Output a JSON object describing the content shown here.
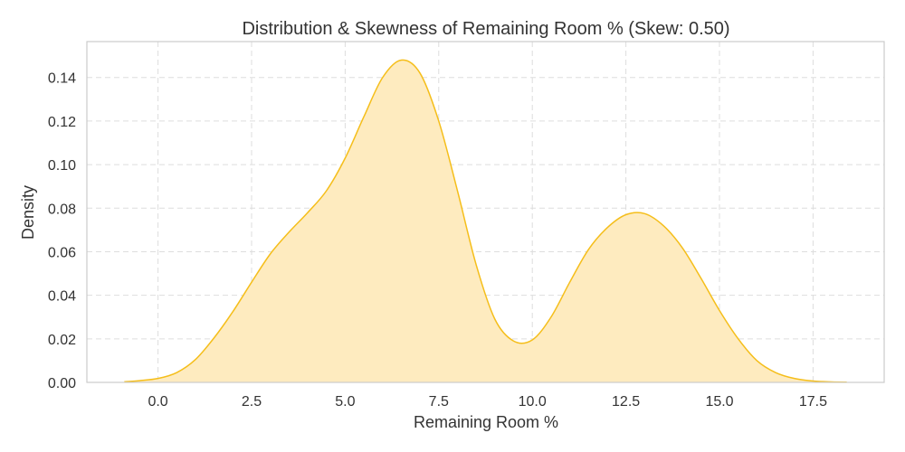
{
  "chart_data": {
    "type": "area",
    "title": "Distribution & Skewness of Remaining Room % (Skew: 0.50)",
    "xlabel": "Remaining Room %",
    "ylabel": "Density",
    "xlim": [
      -1.9,
      19.4
    ],
    "ylim": [
      0,
      0.1565
    ],
    "xticks": [
      "0.0",
      "2.5",
      "5.0",
      "7.5",
      "10.0",
      "12.5",
      "15.0",
      "17.5"
    ],
    "yticks": [
      "0.00",
      "0.02",
      "0.04",
      "0.06",
      "0.08",
      "0.10",
      "0.12",
      "0.14"
    ],
    "grid": true,
    "series": [
      {
        "x": [
          -0.9,
          -0.5,
          0.0,
          0.5,
          1.0,
          1.5,
          2.0,
          2.5,
          3.0,
          3.5,
          4.0,
          4.5,
          5.0,
          5.5,
          6.0,
          6.5,
          7.0,
          7.5,
          8.0,
          8.5,
          9.0,
          9.5,
          10.0,
          10.5,
          11.0,
          11.5,
          12.0,
          12.5,
          13.0,
          13.5,
          14.0,
          14.5,
          15.0,
          15.5,
          16.0,
          16.5,
          17.0,
          17.5,
          18.0,
          18.4
        ],
        "y": [
          0.0003,
          0.0008,
          0.0018,
          0.0045,
          0.0105,
          0.0205,
          0.0325,
          0.046,
          0.059,
          0.069,
          0.078,
          0.088,
          0.103,
          0.122,
          0.14,
          0.148,
          0.142,
          0.12,
          0.088,
          0.054,
          0.029,
          0.019,
          0.0195,
          0.03,
          0.046,
          0.061,
          0.071,
          0.077,
          0.0775,
          0.072,
          0.062,
          0.048,
          0.033,
          0.02,
          0.01,
          0.0045,
          0.0018,
          0.0006,
          0.0002,
          0.0001
        ]
      }
    ],
    "colors": {
      "line": "#f5be1a",
      "fill": "#feebbf",
      "grid": "#dddddd",
      "axes": "#cccccc"
    }
  }
}
